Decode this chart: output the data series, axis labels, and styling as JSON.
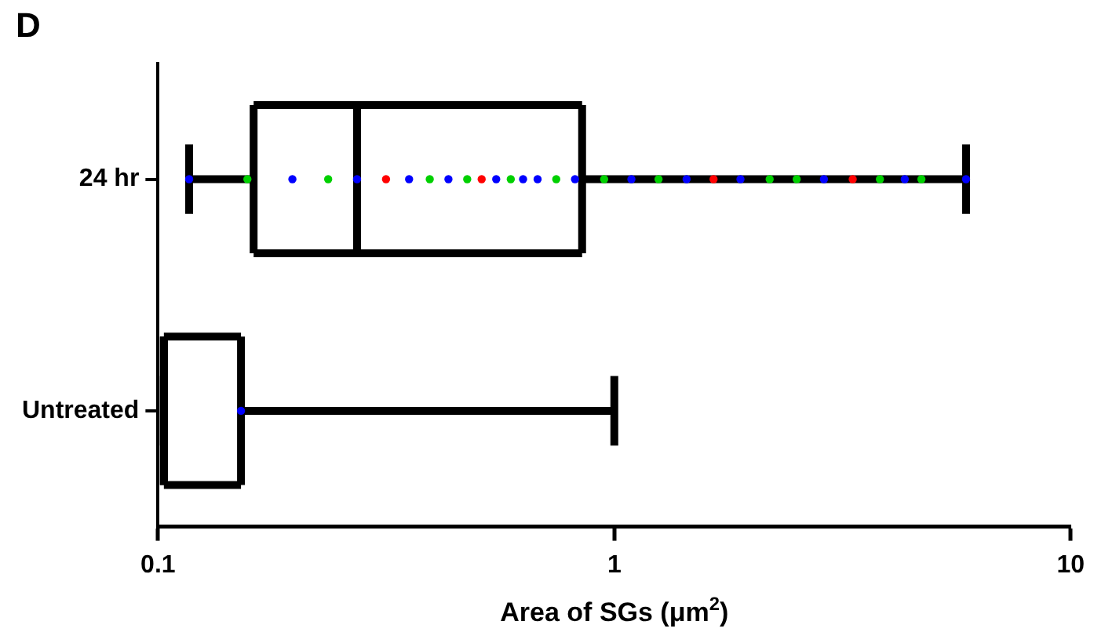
{
  "chart_data": {
    "type": "box",
    "title": "D",
    "orientation": "horizontal",
    "categories": [
      "24 hr",
      "Untreated"
    ],
    "xlabel": "Area of SGs (μm$^{2}$)",
    "log": "x",
    "xlim": [
      0.1,
      10
    ],
    "xticks": [
      0.1,
      1,
      10
    ],
    "grid": false,
    "legend": false,
    "series": [
      {
        "type": "box",
        "color": "#000000",
        "boxes": [
          {
            "low": 0.117,
            "q1": 0.162,
            "median": 0.273,
            "q3": 0.85,
            "high": 5.9
          },
          {
            "low": 0.103,
            "q1": 0.103,
            "median": 0.103,
            "q3": 0.152,
            "high": 1.0
          }
        ]
      },
      {
        "type": "scatter",
        "marker": "circle",
        "x": [
          "24 hr",
          "24 hr",
          "24 hr",
          "24 hr",
          "24 hr",
          "24 hr",
          "24 hr",
          "24 hr",
          "24 hr",
          "24 hr",
          "24 hr",
          "24 hr",
          "24 hr",
          "24 hr",
          "24 hr",
          "24 hr",
          "24 hr",
          "24 hr",
          "24 hr",
          "24 hr",
          "24 hr",
          "24 hr",
          "24 hr",
          "24 hr",
          "24 hr",
          "24 hr",
          "24 hr",
          "24 hr",
          "24 hr",
          "24 hr",
          "24 hr",
          "Untreated"
        ],
        "values": [
          0.117,
          0.157,
          0.197,
          0.236,
          0.273,
          0.316,
          0.355,
          0.394,
          0.433,
          0.476,
          0.512,
          0.551,
          0.593,
          0.631,
          0.679,
          0.746,
          0.82,
          0.95,
          1.09,
          1.25,
          1.44,
          1.65,
          1.89,
          2.19,
          2.51,
          2.88,
          3.33,
          3.82,
          4.33,
          4.71,
          5.9,
          0.152
        ],
        "colors": [
          "#0000ff",
          "#00d000",
          "#0000ff",
          "#00d000",
          "#0000ff",
          "#ff0000",
          "#0000ff",
          "#00d000",
          "#0000ff",
          "#00d000",
          "#ff0000",
          "#0000ff",
          "#00d000",
          "#0000ff",
          "#0000ff",
          "#00d000",
          "#0000ff",
          "#00d000",
          "#0000ff",
          "#00d000",
          "#0000ff",
          "#ff0000",
          "#0000ff",
          "#00d000",
          "#00d000",
          "#0000ff",
          "#ff0000",
          "#00d000",
          "#0000ff",
          "#00d000",
          "#0000ff",
          "#0000ff"
        ]
      }
    ]
  }
}
